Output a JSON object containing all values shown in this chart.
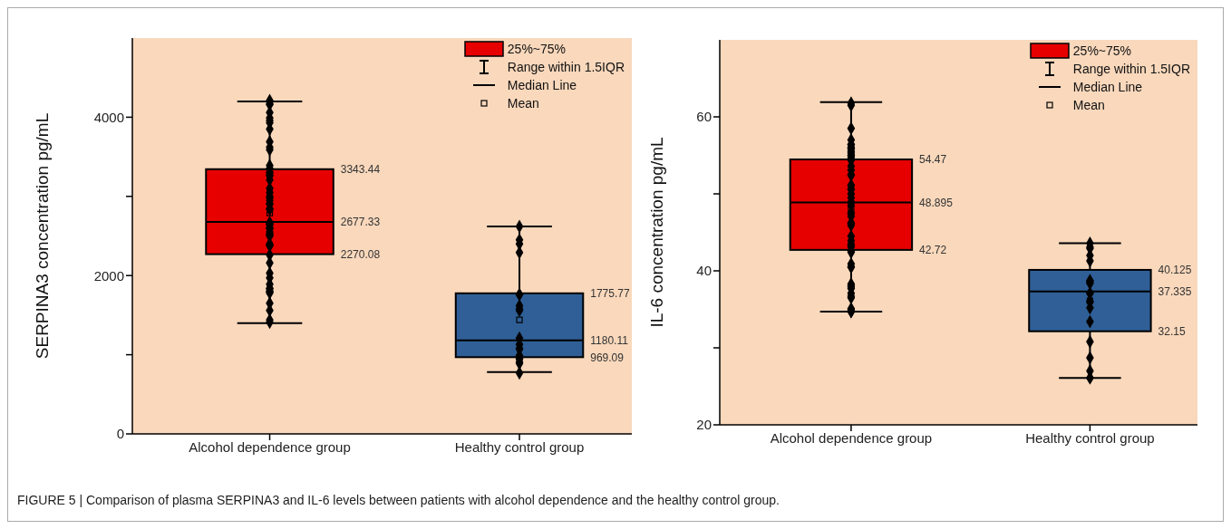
{
  "chart_data": [
    {
      "type": "box",
      "ylabel": "SERPINA3 concentration pg/mL",
      "categories": [
        "Alcohol dependence group",
        "Healthy control group"
      ],
      "colors": [
        "#e60000",
        "#2f5f96"
      ],
      "boxes": [
        {
          "low": 1400,
          "q1": 2270.08,
          "median": 2677.33,
          "q3": 3343.44,
          "high": 4200,
          "mean": 2790
        },
        {
          "low": 780,
          "q1": 969.09,
          "median": 1180.11,
          "q3": 1775.77,
          "high": 2620,
          "mean": 1440
        }
      ],
      "series": [
        {
          "type": "scatter",
          "color": "#000000",
          "x": [
            "Alcohol dependence group",
            "Alcohol dependence group",
            "Alcohol dependence group",
            "Alcohol dependence group",
            "Alcohol dependence group",
            "Alcohol dependence group",
            "Alcohol dependence group",
            "Alcohol dependence group",
            "Alcohol dependence group",
            "Alcohol dependence group",
            "Alcohol dependence group",
            "Alcohol dependence group",
            "Alcohol dependence group",
            "Alcohol dependence group",
            "Alcohol dependence group",
            "Alcohol dependence group",
            "Alcohol dependence group",
            "Alcohol dependence group",
            "Alcohol dependence group",
            "Alcohol dependence group",
            "Alcohol dependence group",
            "Alcohol dependence group",
            "Alcohol dependence group",
            "Alcohol dependence group",
            "Alcohol dependence group",
            "Alcohol dependence group",
            "Alcohol dependence group",
            "Alcohol dependence group",
            "Alcohol dependence group",
            "Alcohol dependence group",
            "Alcohol dependence group",
            "Alcohol dependence group",
            "Alcohol dependence group",
            "Alcohol dependence group",
            "Alcohol dependence group",
            "Alcohol dependence group",
            "Alcohol dependence group",
            "Alcohol dependence group",
            "Alcohol dependence group",
            "Alcohol dependence group",
            "Alcohol dependence group",
            "Alcohol dependence group",
            "Alcohol dependence group",
            "Alcohol dependence group",
            "Alcohol dependence group",
            "Alcohol dependence group",
            "Alcohol dependence group",
            "Alcohol dependence group",
            "Alcohol dependence group",
            "Alcohol dependence group",
            "Alcohol dependence group",
            "Alcohol dependence group",
            "Alcohol dependence group",
            "Alcohol dependence group",
            "Alcohol dependence group",
            "Alcohol dependence group",
            "Healthy control group",
            "Healthy control group",
            "Healthy control group",
            "Healthy control group",
            "Healthy control group",
            "Healthy control group",
            "Healthy control group",
            "Healthy control group",
            "Healthy control group",
            "Healthy control group",
            "Healthy control group",
            "Healthy control group",
            "Healthy control group",
            "Healthy control group",
            "Healthy control group",
            "Healthy control group",
            "Healthy control group",
            "Healthy control group",
            "Healthy control group"
          ],
          "values": [
            4210,
            4170,
            4160,
            4060,
            3990,
            3960,
            3930,
            3850,
            3690,
            3620,
            3590,
            3390,
            3350,
            3350,
            3300,
            3300,
            3270,
            3260,
            3210,
            3100,
            3050,
            3000,
            2980,
            2950,
            2910,
            2900,
            2840,
            2840,
            2670,
            2660,
            2640,
            2640,
            2600,
            2600,
            2590,
            2550,
            2520,
            2520,
            2500,
            2400,
            2380,
            2380,
            2260,
            2160,
            2030,
            1970,
            1890,
            1840,
            1830,
            1800,
            1800,
            1780,
            1650,
            1560,
            1440,
            1410,
            2620,
            2450,
            2400,
            2290,
            1760,
            1760,
            1620,
            1580,
            1560,
            1210,
            1130,
            1080,
            1070,
            990,
            950,
            950,
            910,
            890,
            770
          ]
        }
      ],
      "marker": "diamond",
      "ylim": [
        0,
        5000
      ],
      "yticks": [
        0,
        {
          "value": 1000,
          "label": null
        },
        2000,
        {
          "value": 3000,
          "label": null
        },
        4000
      ],
      "annotations": [
        "25%~75%",
        "Range within 1.5IQR",
        "Median Line",
        "Mean",
        "3343.44",
        "2677.33",
        "2270.08",
        "1775.77",
        "1180.11",
        "969.09"
      ]
    },
    {
      "type": "box",
      "ylabel": "IL-6 concentration pg/mL",
      "categories": [
        "Alcohol dependence group",
        "Healthy control group"
      ],
      "colors": [
        "#e60000",
        "#2f5f96"
      ],
      "boxes": [
        {
          "low": 34.7,
          "q1": 42.72,
          "median": 48.895,
          "q3": 54.47,
          "high": 61.9,
          "mean": 48.0
        },
        {
          "low": 26.1,
          "q1": 32.15,
          "median": 37.335,
          "q3": 40.125,
          "high": 43.6,
          "mean": 36.1
        }
      ],
      "series": [
        {
          "type": "scatter",
          "color": "#000000",
          "x": [
            "Alcohol dependence group",
            "Alcohol dependence group",
            "Alcohol dependence group",
            "Alcohol dependence group",
            "Alcohol dependence group",
            "Alcohol dependence group",
            "Alcohol dependence group",
            "Alcohol dependence group",
            "Alcohol dependence group",
            "Alcohol dependence group",
            "Alcohol dependence group",
            "Alcohol dependence group",
            "Alcohol dependence group",
            "Alcohol dependence group",
            "Alcohol dependence group",
            "Alcohol dependence group",
            "Alcohol dependence group",
            "Alcohol dependence group",
            "Alcohol dependence group",
            "Alcohol dependence group",
            "Alcohol dependence group",
            "Alcohol dependence group",
            "Alcohol dependence group",
            "Alcohol dependence group",
            "Alcohol dependence group",
            "Alcohol dependence group",
            "Alcohol dependence group",
            "Alcohol dependence group",
            "Alcohol dependence group",
            "Alcohol dependence group",
            "Alcohol dependence group",
            "Alcohol dependence group",
            "Alcohol dependence group",
            "Alcohol dependence group",
            "Alcohol dependence group",
            "Alcohol dependence group",
            "Alcohol dependence group",
            "Alcohol dependence group",
            "Alcohol dependence group",
            "Alcohol dependence group",
            "Alcohol dependence group",
            "Alcohol dependence group",
            "Alcohol dependence group",
            "Alcohol dependence group",
            "Alcohol dependence group",
            "Alcohol dependence group",
            "Alcohol dependence group",
            "Alcohol dependence group",
            "Alcohol dependence group",
            "Alcohol dependence group",
            "Alcohol dependence group",
            "Alcohol dependence group",
            "Alcohol dependence group",
            "Alcohol dependence group",
            "Alcohol dependence group",
            "Alcohol dependence group",
            "Healthy control group",
            "Healthy control group",
            "Healthy control group",
            "Healthy control group",
            "Healthy control group",
            "Healthy control group",
            "Healthy control group",
            "Healthy control group",
            "Healthy control group",
            "Healthy control group",
            "Healthy control group",
            "Healthy control group",
            "Healthy control group",
            "Healthy control group",
            "Healthy control group",
            "Healthy control group",
            "Healthy control group",
            "Healthy control group",
            "Healthy control group",
            "Healthy control group"
          ],
          "values": [
            61.8,
            61.5,
            58.5,
            57.0,
            56.4,
            56.4,
            56.0,
            56.0,
            55.8,
            55.5,
            55.3,
            55.0,
            55.0,
            54.7,
            54.4,
            54.4,
            53.6,
            53.1,
            52.5,
            52.4,
            51.1,
            51.1,
            50.6,
            50.6,
            50.0,
            49.5,
            48.9,
            48.9,
            48.5,
            47.5,
            47.5,
            47.1,
            46.2,
            46.2,
            45.9,
            44.5,
            43.9,
            43.4,
            43.4,
            43.1,
            42.6,
            42.4,
            40.9,
            40.5,
            40.5,
            38.3,
            38.1,
            37.9,
            37.7,
            37.1,
            36.7,
            36.5,
            35.1,
            34.9,
            34.7,
            34.7,
            43.6,
            43.1,
            42.9,
            42.0,
            41.3,
            38.7,
            38.7,
            38.4,
            38.4,
            37.1,
            37.1,
            36.0,
            36.0,
            35.2,
            33.4,
            30.8,
            28.7,
            27.0,
            26.1,
            26.1
          ]
        }
      ],
      "marker": "diamond",
      "ylim": [
        20,
        70
      ],
      "yticks": [
        20,
        {
          "value": 30,
          "label": null
        },
        40,
        {
          "value": 50,
          "label": null
        },
        60
      ],
      "annotations": [
        "25%~75%",
        "Range within 1.5IQR",
        "Median Line",
        "Mean",
        "54.47",
        "48.895",
        "42.72",
        "40.125",
        "37.335",
        "32.15"
      ]
    },
    {
      "type": "other",
      "annotations": [
        "FIGURE 5 | Comparison of plasma SERPINA3 and IL-6 levels between patients with alcohol dependence and the healthy control group."
      ]
    }
  ]
}
